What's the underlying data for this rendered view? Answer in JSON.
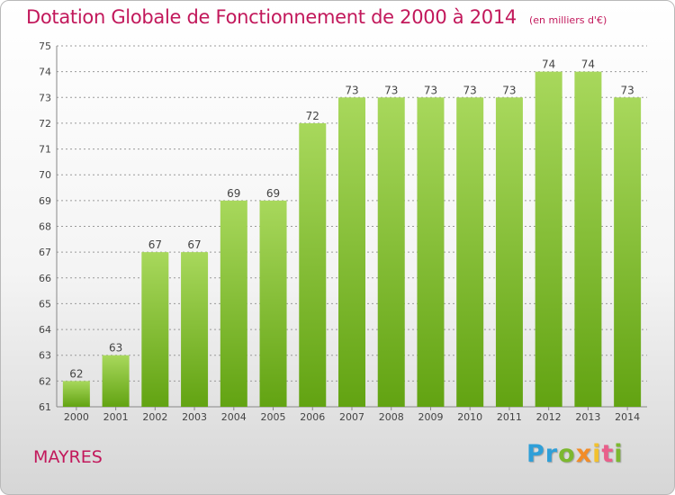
{
  "title": "Dotation Globale de Fonctionnement de 2000 à 2014",
  "unit": "(en milliers d'€)",
  "commune": "MAYRES",
  "logo": {
    "letters": [
      "P",
      "r",
      "o",
      "x",
      "i",
      "t",
      "i"
    ],
    "colors": [
      "#2f9fd8",
      "#2f9fd8",
      "#7cb82f",
      "#f28c28",
      "#f2c12e",
      "#e95f8b",
      "#7cb82f"
    ]
  },
  "colors": {
    "bar_light": "#a8d85c",
    "bar_dark": "#62a312",
    "grid": "#9a9a9a",
    "text": "#444444",
    "title": "#c2185b"
  },
  "chart_data": {
    "type": "bar",
    "categories": [
      "2000",
      "2001",
      "2002",
      "2003",
      "2004",
      "2005",
      "2006",
      "2007",
      "2008",
      "2009",
      "2010",
      "2011",
      "2012",
      "2013",
      "2014"
    ],
    "values": [
      62,
      63,
      67,
      67,
      69,
      69,
      72,
      73,
      73,
      73,
      73,
      73,
      74,
      74,
      73
    ],
    "data_labels": [
      "62",
      "63",
      "67",
      "67",
      "69",
      "69",
      "72",
      "73",
      "73",
      "73",
      "73",
      "73",
      "74",
      "74",
      "73"
    ],
    "ylim": [
      61,
      75
    ],
    "yticks": [
      61,
      62,
      63,
      64,
      65,
      66,
      67,
      68,
      69,
      70,
      71,
      72,
      73,
      74,
      75
    ],
    "grid": true,
    "xlabel": "",
    "ylabel": ""
  }
}
